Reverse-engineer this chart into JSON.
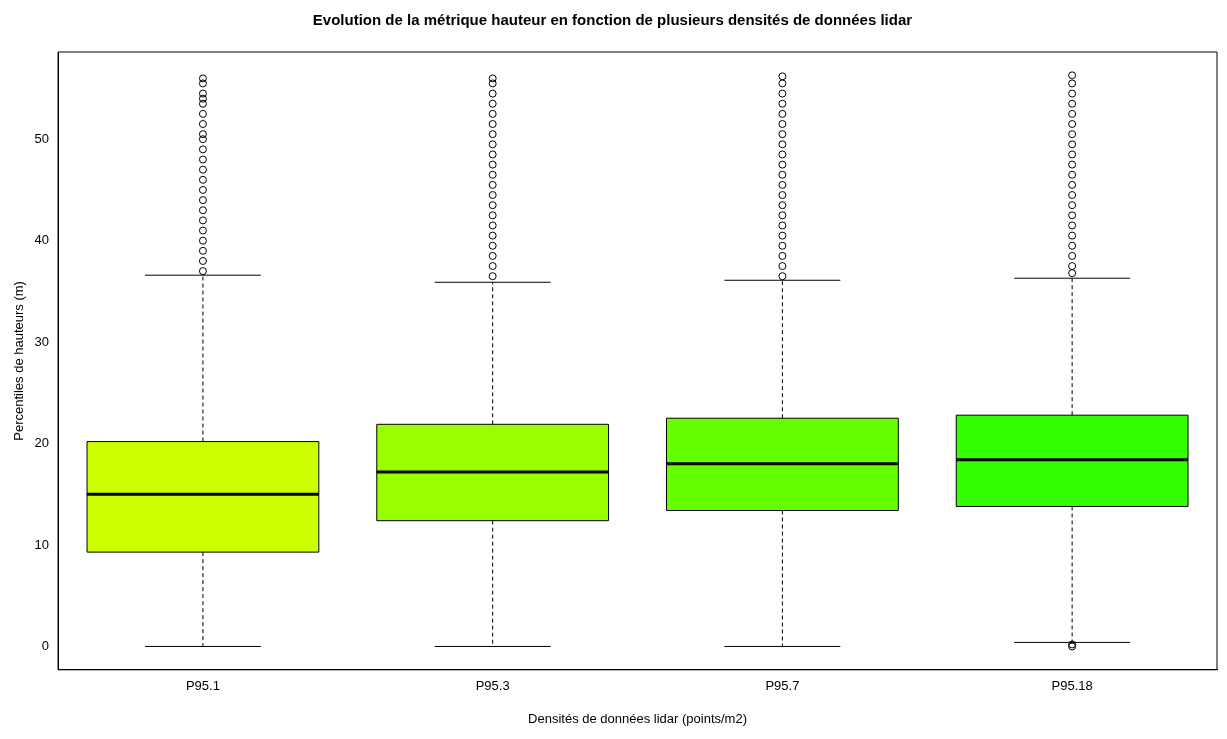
{
  "chart_data": {
    "type": "box",
    "title": "Evolution de la métrique hauteur en fonction de plusieurs densités de données lidar",
    "xlabel": "Densités de données lidar (points/m2)",
    "ylabel": "Percentiles de hauteurs (m)",
    "categories": [
      "P95.1",
      "P95.3",
      "P95.7",
      "P95.18"
    ],
    "colors": [
      "#ccff00",
      "#99ff00",
      "#66ff00",
      "#33ff00"
    ],
    "ylim": [
      -2.3,
      58.6
    ],
    "yticks": [
      0,
      10,
      20,
      30,
      40,
      50
    ],
    "marker": "circle",
    "boxes": [
      {
        "low": 0,
        "q1": 9.3,
        "median": 15.0,
        "q3": 20.2,
        "high": 36.6,
        "outliers": [
          37,
          38,
          39,
          40,
          41,
          42,
          43,
          44,
          45,
          46,
          47,
          48,
          49,
          50,
          50.5,
          51.5,
          52.5,
          53.5,
          54,
          54.5,
          55.5,
          56
        ]
      },
      {
        "low": 0,
        "q1": 12.4,
        "median": 17.2,
        "q3": 21.9,
        "high": 35.9,
        "outliers": [
          36.5,
          37.5,
          38.5,
          39.5,
          40.5,
          41.5,
          42.5,
          43.5,
          44.5,
          45.5,
          46.5,
          47.5,
          48.5,
          49.5,
          50.5,
          51.5,
          52.5,
          53.5,
          54.5,
          55.5,
          56
        ]
      },
      {
        "low": 0,
        "q1": 13.4,
        "median": 18.0,
        "q3": 22.5,
        "high": 36.1,
        "outliers": [
          36.5,
          37.5,
          38.5,
          39.5,
          40.5,
          41.5,
          42.5,
          43.5,
          44.5,
          45.5,
          46.5,
          47.5,
          48.5,
          49.5,
          50.5,
          51.5,
          52.5,
          53.5,
          54.5,
          55.5,
          56.2
        ]
      },
      {
        "low": 0.4,
        "q1": 13.8,
        "median": 18.4,
        "q3": 22.8,
        "high": 36.3,
        "outliers": [
          0,
          0.2,
          36.8,
          37.5,
          38.5,
          39.5,
          40.5,
          41.5,
          42.5,
          43.5,
          44.5,
          45.5,
          46.5,
          47.5,
          48.5,
          49.5,
          50.5,
          51.5,
          52.5,
          53.5,
          54.5,
          55.5,
          56.3
        ]
      }
    ]
  }
}
